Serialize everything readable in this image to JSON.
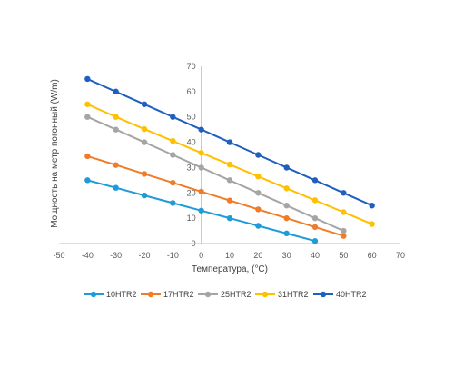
{
  "chart_data": {
    "type": "line",
    "xlabel": "Температура, (°C)",
    "ylabel": "Мощность на метр погонный (W/m)",
    "xlim": [
      -50,
      70
    ],
    "ylim": [
      0,
      70
    ],
    "x_ticks": [
      -50,
      -40,
      -30,
      -20,
      -10,
      0,
      10,
      20,
      30,
      40,
      50,
      60,
      70
    ],
    "y_ticks": [
      0,
      10,
      20,
      30,
      40,
      50,
      60,
      70
    ],
    "grid": false,
    "legend_position": "bottom",
    "series": [
      {
        "name": "10HTR2",
        "color": "#1f9bd7",
        "x": [
          -40,
          -30,
          -20,
          -10,
          0,
          10,
          20,
          30,
          40
        ],
        "y": [
          25,
          22,
          19,
          16,
          13,
          10,
          7,
          4,
          1
        ]
      },
      {
        "name": "17HTR2",
        "color": "#f07c2a",
        "x": [
          -40,
          -30,
          -20,
          -10,
          0,
          10,
          20,
          30,
          40,
          50
        ],
        "y": [
          34.5,
          31,
          27.5,
          24,
          20.5,
          17,
          13.5,
          10,
          6.5,
          3
        ]
      },
      {
        "name": "25HTR2",
        "color": "#a5a5a5",
        "x": [
          -40,
          -30,
          -20,
          -10,
          0,
          10,
          20,
          30,
          40,
          50
        ],
        "y": [
          50,
          45,
          40,
          35,
          30,
          25,
          20,
          15,
          10,
          5
        ]
      },
      {
        "name": "31HTR2",
        "color": "#ffc000",
        "x": [
          -40,
          -30,
          -20,
          -10,
          0,
          10,
          20,
          30,
          40,
          50,
          60
        ],
        "y": [
          55,
          50,
          45.2,
          40.5,
          35.8,
          31.2,
          26.5,
          21.8,
          17.1,
          12.4,
          7.7
        ]
      },
      {
        "name": "40HTR2",
        "color": "#1f5fbf",
        "x": [
          -40,
          -30,
          -20,
          -10,
          0,
          10,
          20,
          30,
          40,
          50,
          60
        ],
        "y": [
          65,
          60,
          55,
          50,
          45,
          40,
          35,
          30,
          25,
          20,
          15
        ]
      }
    ]
  }
}
